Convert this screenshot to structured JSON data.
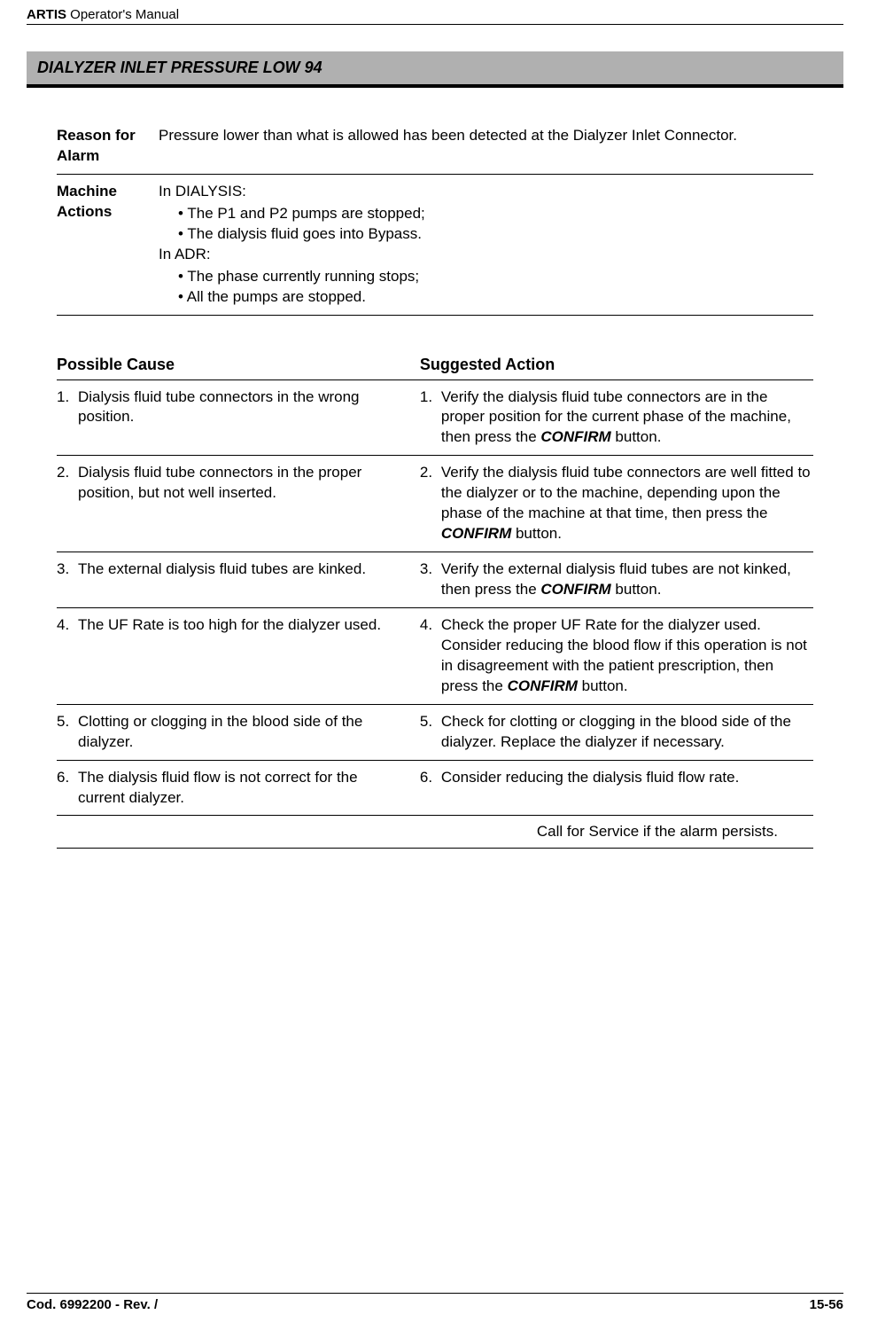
{
  "header": {
    "product": "ARTIS",
    "suffix": " Operator's Manual"
  },
  "section": {
    "title": "DIALYZER INLET PRESSURE LOW 94"
  },
  "info": [
    {
      "label": "Reason for Alarm",
      "type": "text",
      "value": "Pressure lower than what is allowed has been detected at the Dialyzer Inlet Connector."
    },
    {
      "label": "Machine Actions",
      "type": "contexts",
      "blocks": [
        {
          "context": "In DIALYSIS:",
          "bullets": [
            "The P1 and P2 pumps are stopped;",
            "The dialysis fluid goes into Bypass."
          ]
        },
        {
          "context": "In ADR:",
          "bullets": [
            "The phase currently running stops;",
            "All the pumps are stopped."
          ]
        }
      ]
    }
  ],
  "causeHeader": {
    "cause": "Possible Cause",
    "action": "Suggested Action"
  },
  "rows": [
    {
      "num": "1.",
      "cause": "Dialysis fluid tube connectors in the wrong position.",
      "actionParts": [
        "Verify the dialysis fluid tube connectors are in the proper position for the current phase of the machine, then press the ",
        {
          "bold": "CONFIRM"
        },
        " button."
      ]
    },
    {
      "num": "2.",
      "cause": "Dialysis fluid tube connectors in the proper position, but not well inserted.",
      "actionParts": [
        "Verify the dialysis fluid tube connectors are well fitted to the dialyzer or to the machine, depending upon the phase of the machine at that time, then press the ",
        {
          "bold": "CONFIRM"
        },
        " button."
      ]
    },
    {
      "num": "3.",
      "cause": "The external dialysis fluid tubes are kinked.",
      "actionParts": [
        "Verify the external dialysis fluid tubes are not kinked, then press the ",
        {
          "bold": "CONFIRM"
        },
        " button."
      ]
    },
    {
      "num": "4.",
      "cause": "The UF Rate is too high for the dialyzer used.",
      "actionParts": [
        "Check the proper UF Rate for the dialyzer used. Consider reducing the blood flow if this operation is not in disagreement with the patient prescription, then press the ",
        {
          "bold": "CONFIRM"
        },
        " button."
      ]
    },
    {
      "num": "5.",
      "cause": "Clotting or clogging in the blood side of the dialyzer.",
      "actionParts": [
        "Check for clotting or clogging in the blood side of the dialyzer. Replace the dialyzer if necessary."
      ]
    },
    {
      "num": "6.",
      "cause": "The dialysis fluid flow is not correct for the current dialyzer.",
      "actionParts": [
        "Consider reducing the dialysis fluid flow rate."
      ]
    }
  ],
  "service": "Call for Service if the alarm persists.",
  "footer": {
    "left": "Cod. 6992200 - Rev. /",
    "right": "15-56"
  }
}
